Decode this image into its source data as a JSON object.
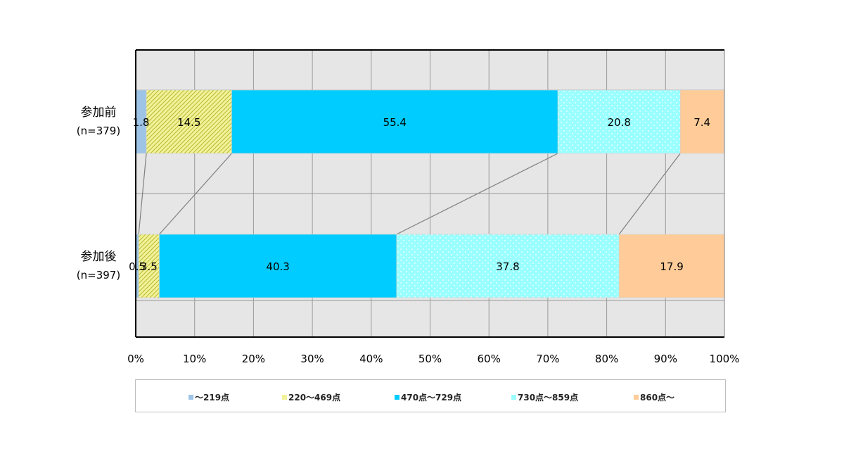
{
  "chart_data": {
    "type": "bar",
    "orientation": "horizontal",
    "stacked": true,
    "percent": true,
    "categories": [
      [
        "参加前",
        "(n=379)"
      ],
      [
        "参加後",
        "(n=397)"
      ]
    ],
    "series": [
      {
        "name": "～219点",
        "values": [
          1.8,
          0.5
        ],
        "color": "#9dc3e6",
        "pattern": "none"
      },
      {
        "name": "220～469点",
        "values": [
          14.5,
          3.5
        ],
        "color": "#f2f29a",
        "pattern": "diagonal-hatch"
      },
      {
        "name": "470点～729点",
        "values": [
          55.4,
          40.3
        ],
        "color": "#00ccff",
        "pattern": "none"
      },
      {
        "name": "730点～859点",
        "values": [
          20.8,
          37.8
        ],
        "color": "#99ffff",
        "pattern": "dots"
      },
      {
        "name": "860点～",
        "values": [
          7.4,
          17.9
        ],
        "color": "#ffcc99",
        "pattern": "none"
      }
    ],
    "data_labels": [
      [
        "1.8",
        "14.5",
        "55.4",
        "20.8",
        "7.4"
      ],
      [
        "0.5",
        "3.5",
        "40.3",
        "37.8",
        "17.9"
      ]
    ],
    "x_ticks": [
      "0%",
      "10%",
      "20%",
      "30%",
      "40%",
      "50%",
      "60%",
      "70%",
      "80%",
      "90%",
      "100%"
    ],
    "xlim": [
      0,
      100
    ],
    "grid": true,
    "series_connector_lines": true,
    "legend_position": "bottom",
    "plot_background": "#e6e6e6"
  }
}
